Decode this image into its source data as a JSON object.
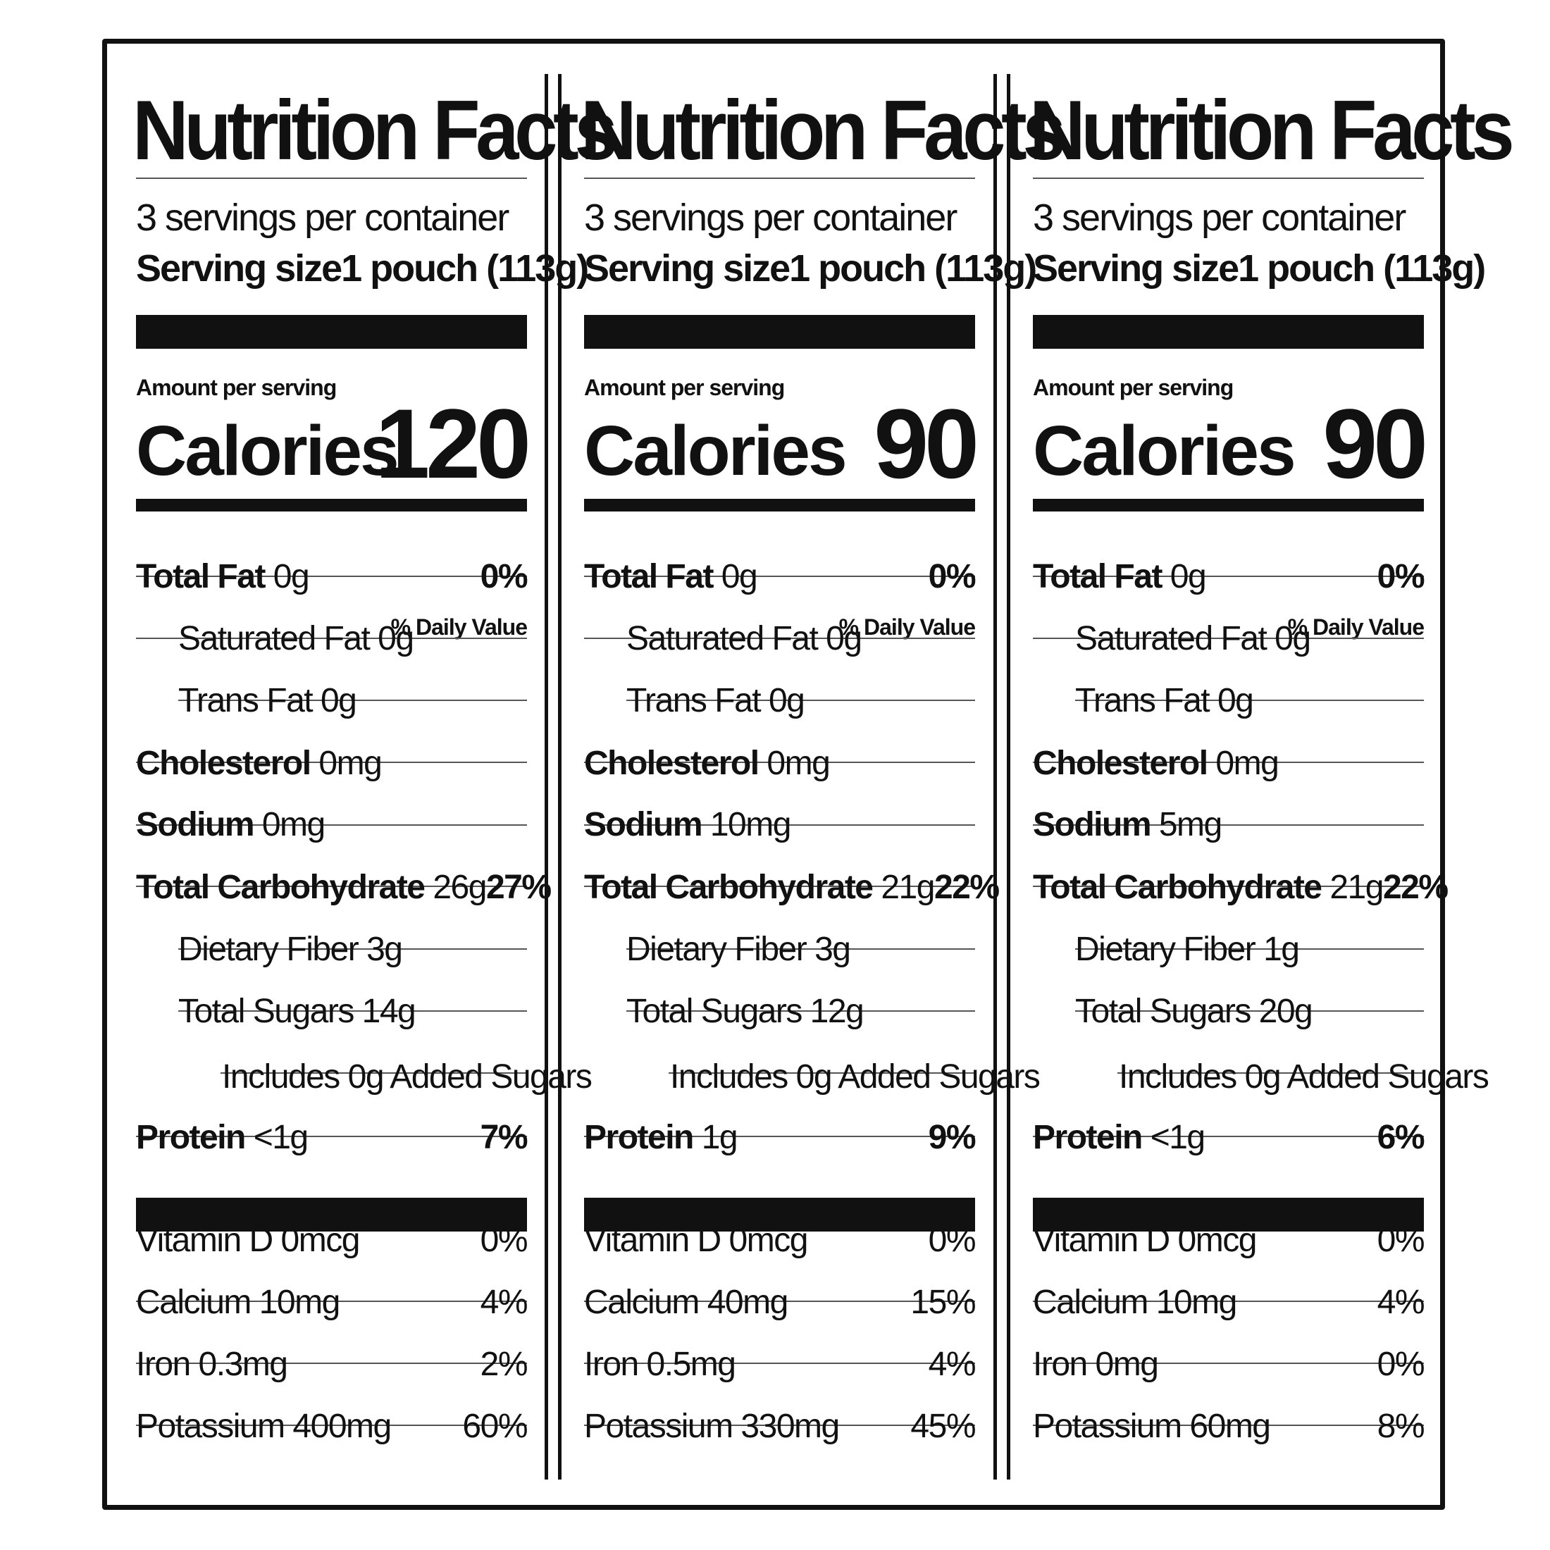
{
  "panels": [
    {
      "title": "Nutrition Facts",
      "servings": "3 servings per container",
      "serving_size_label": "Serving size",
      "serving_size_value": "1 pouch (113g)",
      "amount_per_serving": "Amount per serving",
      "calories_label": "Calories",
      "calories_value": "120",
      "daily_value_header": "% Daily Value",
      "rows": {
        "total_fat": {
          "label": "Total Fat",
          "amount": "0g",
          "pct": "0%"
        },
        "saturated_fat": {
          "label": "Saturated Fat 0g"
        },
        "trans_fat": {
          "label": "Trans Fat 0g"
        },
        "cholesterol": {
          "label": "Cholesterol",
          "amount": "0mg"
        },
        "sodium": {
          "label": "Sodium",
          "amount": "0mg"
        },
        "total_carb": {
          "label": "Total Carbohydrate",
          "amount": "26g",
          "pct": "27%"
        },
        "fiber": {
          "label": "Dietary Fiber 3g"
        },
        "sugars": {
          "label": "Total Sugars 14g"
        },
        "added_sugars": {
          "label": "Includes 0g Added Sugars"
        },
        "protein": {
          "label": "Protein",
          "amount": "<1g",
          "pct": "7%"
        },
        "vitamin_d": {
          "label": "Vitamin D 0mcg",
          "pct": "0%"
        },
        "calcium": {
          "label": "Calcium 10mg",
          "pct": "4%"
        },
        "iron": {
          "label": "Iron 0.3mg",
          "pct": "2%"
        },
        "potassium": {
          "label": "Potassium 400mg",
          "pct": "60%"
        }
      }
    },
    {
      "title": "Nutrition Facts",
      "servings": "3 servings per container",
      "serving_size_label": "Serving size",
      "serving_size_value": "1 pouch (113g)",
      "amount_per_serving": "Amount per serving",
      "calories_label": "Calories",
      "calories_value": "90",
      "daily_value_header": "% Daily Value",
      "rows": {
        "total_fat": {
          "label": "Total Fat",
          "amount": "0g",
          "pct": "0%"
        },
        "saturated_fat": {
          "label": "Saturated Fat 0g"
        },
        "trans_fat": {
          "label": "Trans Fat 0g"
        },
        "cholesterol": {
          "label": "Cholesterol",
          "amount": "0mg"
        },
        "sodium": {
          "label": "Sodium",
          "amount": "10mg"
        },
        "total_carb": {
          "label": "Total Carbohydrate",
          "amount": "21g",
          "pct": "22%"
        },
        "fiber": {
          "label": "Dietary Fiber 3g"
        },
        "sugars": {
          "label": "Total Sugars 12g"
        },
        "added_sugars": {
          "label": "Includes 0g Added Sugars"
        },
        "protein": {
          "label": "Protein",
          "amount": "1g",
          "pct": "9%"
        },
        "vitamin_d": {
          "label": "Vitamin D 0mcg",
          "pct": "0%"
        },
        "calcium": {
          "label": "Calcium 40mg",
          "pct": "15%"
        },
        "iron": {
          "label": "Iron 0.5mg",
          "pct": "4%"
        },
        "potassium": {
          "label": "Potassium 330mg",
          "pct": "45%"
        }
      }
    },
    {
      "title": "Nutrition Facts",
      "servings": "3 servings per container",
      "serving_size_label": "Serving size",
      "serving_size_value": "1 pouch (113g)",
      "amount_per_serving": "Amount per serving",
      "calories_label": "Calories",
      "calories_value": "90",
      "daily_value_header": "% Daily Value",
      "rows": {
        "total_fat": {
          "label": "Total Fat",
          "amount": "0g",
          "pct": "0%"
        },
        "saturated_fat": {
          "label": "Saturated Fat 0g"
        },
        "trans_fat": {
          "label": "Trans Fat 0g"
        },
        "cholesterol": {
          "label": "Cholesterol",
          "amount": "0mg"
        },
        "sodium": {
          "label": "Sodium",
          "amount": "5mg"
        },
        "total_carb": {
          "label": "Total Carbohydrate",
          "amount": "21g",
          "pct": "22%"
        },
        "fiber": {
          "label": "Dietary Fiber 1g"
        },
        "sugars": {
          "label": "Total Sugars 20g"
        },
        "added_sugars": {
          "label": "Includes 0g Added Sugars"
        },
        "protein": {
          "label": "Protein",
          "amount": "<1g",
          "pct": "6%"
        },
        "vitamin_d": {
          "label": "Vitamin D 0mcg",
          "pct": "0%"
        },
        "calcium": {
          "label": "Calcium 10mg",
          "pct": "4%"
        },
        "iron": {
          "label": "Iron 0mg",
          "pct": "0%"
        },
        "potassium": {
          "label": "Potassium 60mg",
          "pct": "8%"
        }
      }
    }
  ]
}
